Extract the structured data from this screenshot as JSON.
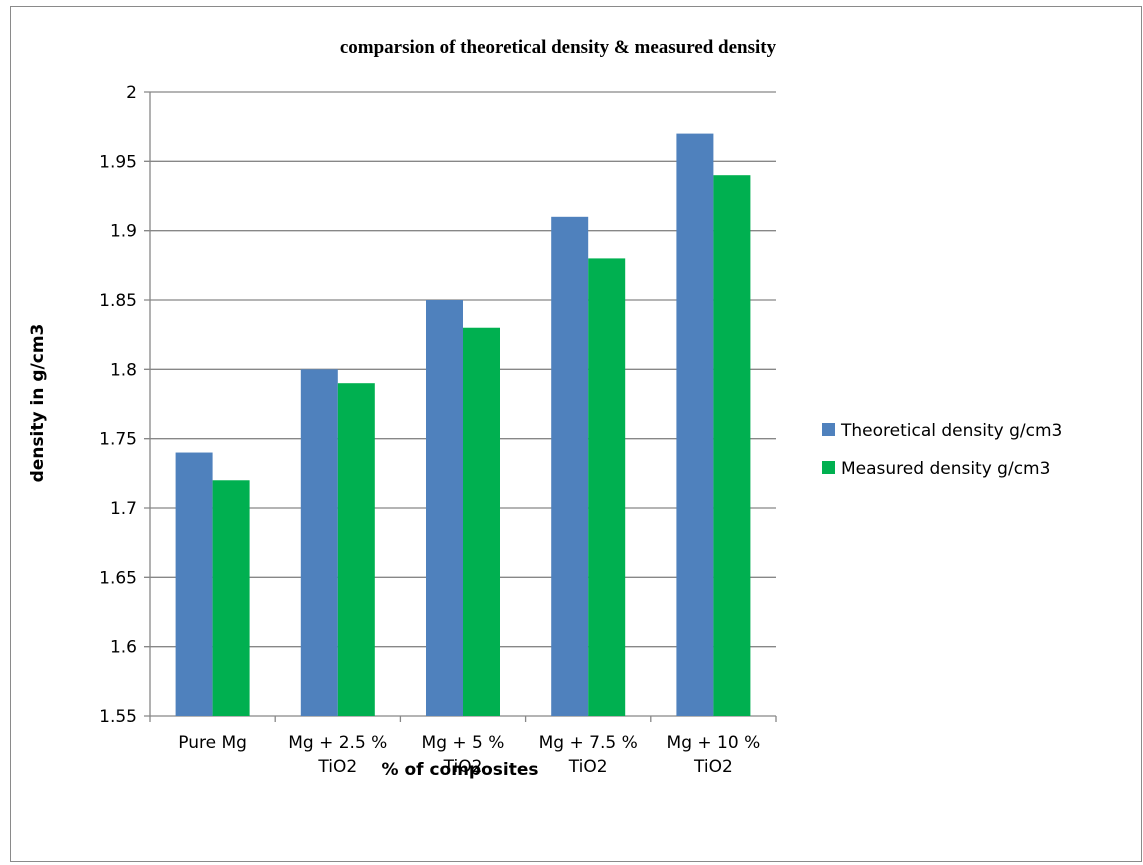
{
  "chart_data": {
    "type": "bar",
    "title": "comparsion of theoretical density & measured density",
    "xlabel": "% of composites",
    "ylabel": "density in g/cm3",
    "categories": [
      [
        "Pure Mg"
      ],
      [
        "Mg + 2.5 %",
        "TiO2"
      ],
      [
        "Mg + 5 %",
        "TiO2"
      ],
      [
        "Mg + 7.5 %",
        "TiO2"
      ],
      [
        "Mg + 10 %",
        "TiO2"
      ]
    ],
    "series": [
      {
        "name": "Theoretical density g/cm3",
        "color": "#4f81bd",
        "values": [
          1.74,
          1.8,
          1.85,
          1.91,
          1.97
        ]
      },
      {
        "name": "Measured density g/cm3",
        "color": "#00b050",
        "values": [
          1.72,
          1.79,
          1.83,
          1.88,
          1.94
        ]
      }
    ],
    "ylim": [
      1.55,
      2.0
    ],
    "yticks": [
      "1.55",
      "1.6",
      "1.65",
      "1.7",
      "1.75",
      "1.8",
      "1.85",
      "1.9",
      "1.95",
      "2"
    ],
    "grid": true,
    "legend_position": "right"
  }
}
